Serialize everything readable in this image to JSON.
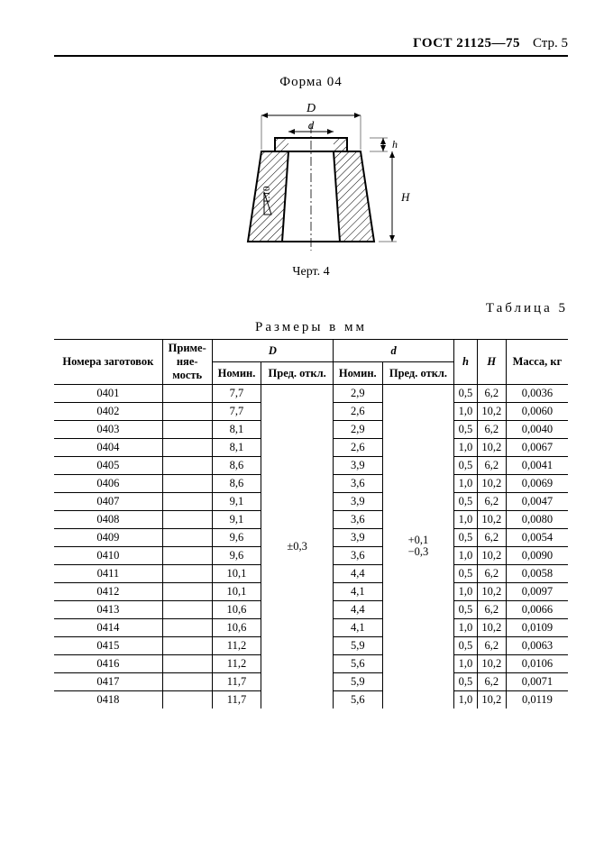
{
  "header": {
    "gost": "ГОСТ 21125—75",
    "page": "Стр. 5"
  },
  "form_title": "Форма 04",
  "figure": {
    "D_label": "D",
    "d_label": "d",
    "h_label": "h",
    "H_label": "H",
    "taper_label": "1:10",
    "caption": "Черт. 4"
  },
  "table_label": "Таблица 5",
  "table_units": "Размеры в мм",
  "columns": {
    "num": "Номера заготовок",
    "applic": "Приме-\nняе-\nмость",
    "D": "D",
    "d": "d",
    "nom": "Номин.",
    "tol": "Пред. откл.",
    "h": "h",
    "H": "H",
    "mass": "Масса, кг"
  },
  "D_tol": "±0,3",
  "d_tol_upper": "+0,1",
  "d_tol_lower": "−0,3",
  "rows": [
    {
      "n": "0401",
      "D": "7,7",
      "d": "2,9",
      "h": "0,5",
      "H": "6,2",
      "m": "0,0036"
    },
    {
      "n": "0402",
      "D": "7,7",
      "d": "2,6",
      "h": "1,0",
      "H": "10,2",
      "m": "0,0060"
    },
    {
      "n": "0403",
      "D": "8,1",
      "d": "2,9",
      "h": "0,5",
      "H": "6,2",
      "m": "0,0040"
    },
    {
      "n": "0404",
      "D": "8,1",
      "d": "2,6",
      "h": "1,0",
      "H": "10,2",
      "m": "0,0067"
    },
    {
      "n": "0405",
      "D": "8,6",
      "d": "3,9",
      "h": "0,5",
      "H": "6,2",
      "m": "0,0041"
    },
    {
      "n": "0406",
      "D": "8,6",
      "d": "3,6",
      "h": "1,0",
      "H": "10,2",
      "m": "0,0069"
    },
    {
      "n": "0407",
      "D": "9,1",
      "d": "3,9",
      "h": "0,5",
      "H": "6,2",
      "m": "0,0047"
    },
    {
      "n": "0408",
      "D": "9,1",
      "d": "3,6",
      "h": "1,0",
      "H": "10,2",
      "m": "0,0080"
    },
    {
      "n": "0409",
      "D": "9,6",
      "d": "3,9",
      "h": "0,5",
      "H": "6,2",
      "m": "0,0054"
    },
    {
      "n": "0410",
      "D": "9,6",
      "d": "3,6",
      "h": "1,0",
      "H": "10,2",
      "m": "0,0090"
    },
    {
      "n": "0411",
      "D": "10,1",
      "d": "4,4",
      "h": "0,5",
      "H": "6,2",
      "m": "0,0058"
    },
    {
      "n": "0412",
      "D": "10,1",
      "d": "4,1",
      "h": "1,0",
      "H": "10,2",
      "m": "0,0097"
    },
    {
      "n": "0413",
      "D": "10,6",
      "d": "4,4",
      "h": "0,5",
      "H": "6,2",
      "m": "0,0066"
    },
    {
      "n": "0414",
      "D": "10,6",
      "d": "4,1",
      "h": "1,0",
      "H": "10,2",
      "m": "0,0109"
    },
    {
      "n": "0415",
      "D": "11,2",
      "d": "5,9",
      "h": "0,5",
      "H": "6,2",
      "m": "0,0063"
    },
    {
      "n": "0416",
      "D": "11,2",
      "d": "5,6",
      "h": "1,0",
      "H": "10,2",
      "m": "0,0106"
    },
    {
      "n": "0417",
      "D": "11,7",
      "d": "5,9",
      "h": "0,5",
      "H": "6,2",
      "m": "0,0071"
    },
    {
      "n": "0418",
      "D": "11,7",
      "d": "5,6",
      "h": "1,0",
      "H": "10,2",
      "m": "0,0119"
    }
  ]
}
